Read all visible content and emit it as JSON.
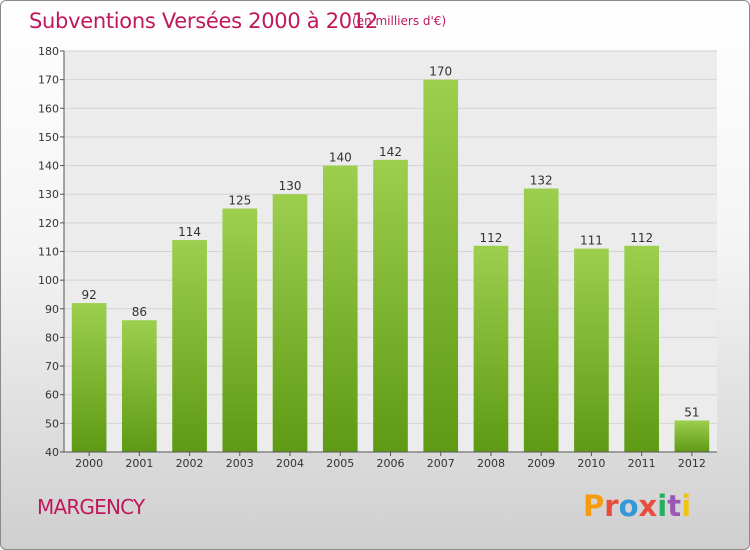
{
  "header": {
    "title": "Subventions Versées 2000 à 2012",
    "unit": "(en milliers d'€)"
  },
  "footer": {
    "commune": "MARGENCY",
    "logo": "Proxiti"
  },
  "colors": {
    "title": "#c0185a",
    "bar_top": "#9ccf4e",
    "bar_bottom": "#5f9a14"
  },
  "chart_data": {
    "type": "bar",
    "title": "Subventions Versées 2000 à 2012",
    "subtitle": "(en milliers d'€)",
    "categories": [
      "2000",
      "2001",
      "2002",
      "2003",
      "2004",
      "2005",
      "2006",
      "2007",
      "2008",
      "2009",
      "2010",
      "2011",
      "2012"
    ],
    "values": [
      92,
      86,
      114,
      125,
      130,
      140,
      142,
      170,
      112,
      132,
      111,
      112,
      51
    ],
    "ylim": [
      40,
      180
    ],
    "yticks": [
      40,
      50,
      60,
      70,
      80,
      90,
      100,
      110,
      120,
      130,
      140,
      150,
      160,
      170,
      180
    ],
    "grid": true,
    "legend": "none"
  }
}
